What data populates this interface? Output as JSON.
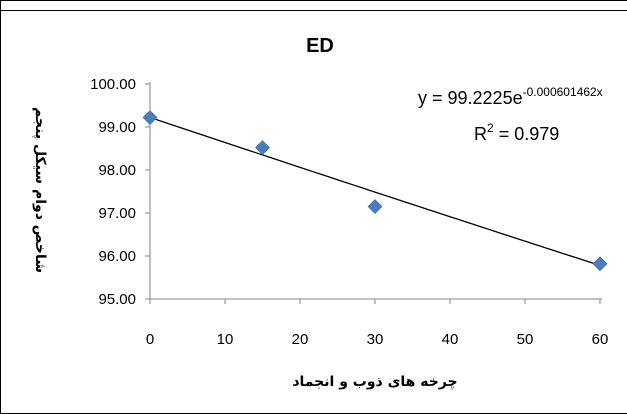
{
  "chart_data": {
    "type": "scatter",
    "title": "ED",
    "xlabel": "چرخه های ذوب و انجماد",
    "ylabel": "شاخص دوام سیکل پنجم",
    "xlim": [
      0,
      60
    ],
    "ylim": [
      95.0,
      100.0
    ],
    "x_ticks": [
      "0",
      "10",
      "20",
      "30",
      "40",
      "50",
      "60"
    ],
    "y_ticks": [
      "95.00",
      "96.00",
      "97.00",
      "98.00",
      "99.00",
      "100.00"
    ],
    "grid": false,
    "legend": "none",
    "series": [
      {
        "marker": "diamond",
        "color": "#4a7ebb",
        "x": [
          0,
          15,
          30,
          60
        ],
        "y": [
          99.22,
          98.52,
          97.15,
          95.82
        ]
      }
    ],
    "trendline": {
      "type": "exponential",
      "a": 99.2225,
      "b": -0.000601462,
      "color": "#000000",
      "equation_prefix": "y = 99.2225e",
      "equation_exponent": "-0.000601462x",
      "r2_prefix": "R",
      "r2_exponent": "2",
      "r2_suffix": " = 0.979"
    }
  }
}
